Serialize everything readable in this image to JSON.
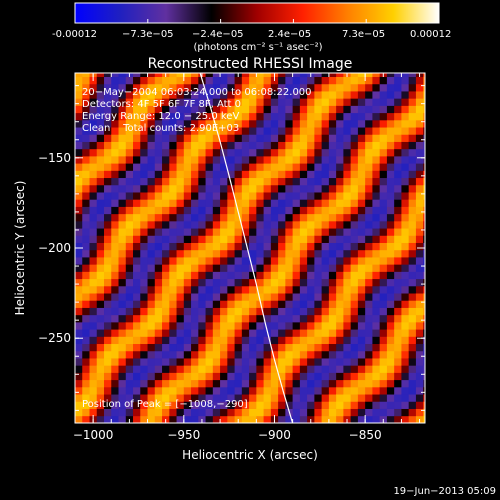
{
  "colorbar": {
    "tick_labels": [
      "-0.00012",
      "−7.3e−05",
      "−2.4e−05",
      "2.4e−05",
      "7.3e−05",
      "0.00012"
    ],
    "unit_label": "(photons cm⁻² s⁻¹ asec⁻²)",
    "range": [
      -0.00012,
      0.00012
    ],
    "colors": [
      "#0000ff",
      "#2020c0",
      "#6030a0",
      "#000000",
      "#a00000",
      "#ff2000",
      "#ff8000",
      "#ffd000",
      "#ffffff"
    ]
  },
  "header": {
    "title": "Reconstructed RHESSI Image"
  },
  "annotations": {
    "line1": "20−May−2004 06:03:24.000 to 06:08:22.000",
    "line2": "Detectors: 4F 5F 6F 7F 8F, Att 0",
    "line3": "Energy Range: 12.0 − 25.0 keV",
    "line4": "Clean    Total counts: 2.90E+03",
    "peak": "Position of Peak = [−1008,−290]"
  },
  "footer": {
    "timestamp": "19−Jun−2013 05:09"
  },
  "chart_data": {
    "type": "heatmap",
    "title": "Reconstructed RHESSI Image",
    "xlabel": "Heliocentric X (arcsec)",
    "ylabel": "Heliocentric Y (arcsec)",
    "xlim": [
      -1010,
      -817
    ],
    "ylim": [
      -297,
      -103
    ],
    "x_ticks": [
      -1000,
      -950,
      -900,
      -850
    ],
    "x_tick_labels": [
      "−1000",
      "−950",
      "−900",
      "−850"
    ],
    "y_ticks": [
      -250,
      -200,
      -150
    ],
    "y_tick_labels": [
      "−250",
      "−200",
      "−150"
    ],
    "pixel_size_arcsec": 4,
    "peak_position": [
      -1008,
      -290
    ],
    "limb_curve": {
      "x": [
        -941,
        -935,
        -930,
        -925,
        -920,
        -915,
        -910,
        -905,
        -900,
        -895,
        -890
      ],
      "y": [
        -103,
        -123,
        -141,
        -160,
        -180,
        -200,
        -220,
        -242,
        -262,
        -280,
        -297
      ]
    },
    "fringe_pattern": {
      "orientation_deg": 40,
      "period_arcsec": 38,
      "amplitude_range": [
        -0.00012,
        0.00012
      ]
    }
  }
}
